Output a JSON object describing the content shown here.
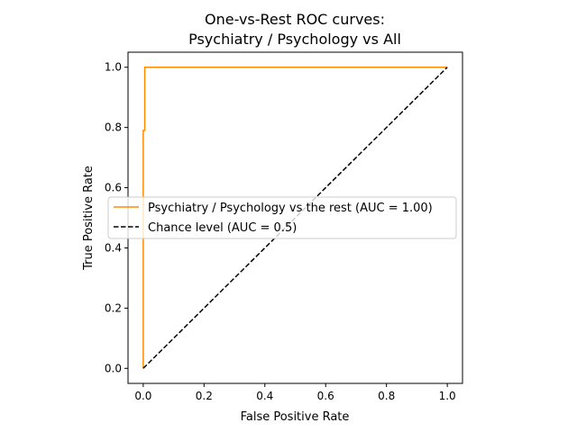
{
  "chart_data": {
    "type": "line",
    "title": [
      "One-vs-Rest ROC curves:",
      "Psychiatry / Psychology vs All"
    ],
    "xlabel": "False Positive Rate",
    "ylabel": "True Positive Rate",
    "xlim": [
      -0.05,
      1.05
    ],
    "ylim": [
      -0.05,
      1.05
    ],
    "xticks": [
      "0.0",
      "0.2",
      "0.4",
      "0.6",
      "0.8",
      "1.0"
    ],
    "yticks": [
      "0.0",
      "0.2",
      "0.4",
      "0.6",
      "0.8",
      "1.0"
    ],
    "grid": false,
    "legend_position": "center-left",
    "series": [
      {
        "name": "Psychiatry / Psychology vs the rest (AUC = 1.00)",
        "color": "#ff8c00",
        "style": "solid",
        "x": [
          0.0,
          0.0,
          0.0,
          0.0,
          0.005,
          0.005,
          1.0
        ],
        "y": [
          0.0,
          0.77,
          0.79,
          0.79,
          0.79,
          1.0,
          1.0
        ]
      },
      {
        "name": "Chance level (AUC = 0.5)",
        "color": "#000000",
        "style": "dashed",
        "x": [
          0.0,
          1.0
        ],
        "y": [
          0.0,
          1.0
        ]
      }
    ]
  }
}
